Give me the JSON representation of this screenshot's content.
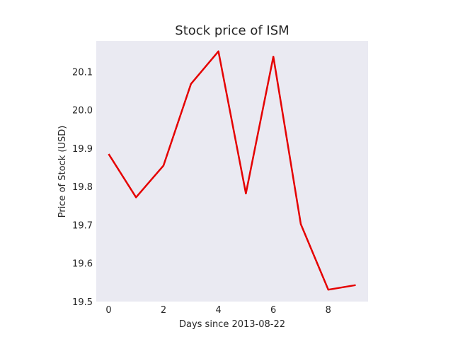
{
  "chart_data": {
    "type": "line",
    "title": "Stock price of ISM",
    "xlabel": "Days since 2013-08-22",
    "ylabel": "Price of Stock (USD)",
    "xlim": [
      -0.45,
      9.45
    ],
    "ylim": [
      19.5,
      20.18
    ],
    "xticks": [
      0,
      2,
      4,
      6,
      8
    ],
    "yticks": [
      19.5,
      19.6,
      19.7,
      19.8,
      19.9,
      20.0,
      20.1
    ],
    "ytick_labels": [
      "19.5",
      "19.6",
      "19.7",
      "19.8",
      "19.9",
      "20.0",
      "20.1"
    ],
    "grid": false,
    "background_color": "#eaeaf2",
    "series": [
      {
        "color": "#e50000",
        "x": [
          0,
          1,
          2,
          3,
          4,
          5,
          6,
          7,
          8,
          9
        ],
        "values": [
          19.885,
          19.772,
          19.855,
          20.068,
          20.153,
          19.782,
          20.139,
          19.702,
          19.531,
          19.543
        ]
      }
    ]
  }
}
